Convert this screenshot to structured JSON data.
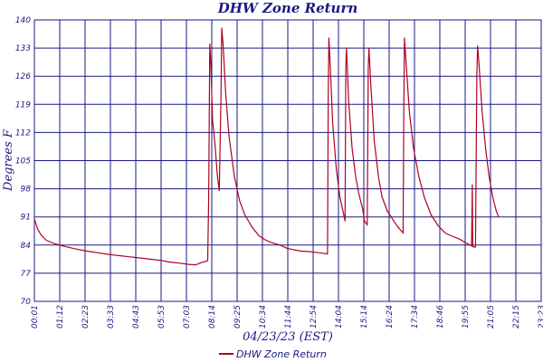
{
  "chart_data": {
    "type": "line",
    "title": "DHW Zone Return",
    "xlabel": "04/23/23 (EST)",
    "ylabel": "Degrees F",
    "ylim": [
      70,
      140
    ],
    "yticks": [
      70,
      77,
      84,
      91,
      98,
      105,
      112,
      119,
      126,
      133,
      140
    ],
    "xlim_minutes": [
      1,
      1443
    ],
    "xticks": [
      "00:01",
      "01:12",
      "02:23",
      "03:33",
      "04:43",
      "05:53",
      "07:03",
      "08:14",
      "09:25",
      "10:34",
      "11:44",
      "12:54",
      "14:04",
      "15:14",
      "16:24",
      "17:34",
      "18:46",
      "19:55",
      "21:05",
      "22:15",
      "23:23"
    ],
    "grid": true,
    "legend_position": "bottom",
    "colors": {
      "series": "#b00020",
      "grid": "#1a1a80",
      "text": "#1a1a80"
    },
    "series": [
      {
        "name": "DHW Zone Return",
        "points": [
          [
            "00:01",
            90.5
          ],
          [
            "00:10",
            88.0
          ],
          [
            "00:20",
            86.5
          ],
          [
            "00:35",
            85.2
          ],
          [
            "01:00",
            84.3
          ],
          [
            "01:30",
            83.6
          ],
          [
            "02:00",
            83.0
          ],
          [
            "02:30",
            82.5
          ],
          [
            "03:00",
            82.1
          ],
          [
            "03:30",
            81.7
          ],
          [
            "04:00",
            81.4
          ],
          [
            "04:30",
            81.1
          ],
          [
            "05:00",
            80.8
          ],
          [
            "05:30",
            80.5
          ],
          [
            "06:00",
            80.2
          ],
          [
            "06:25",
            79.8
          ],
          [
            "06:55",
            79.5
          ],
          [
            "07:20",
            79.2
          ],
          [
            "07:40",
            79.1
          ],
          [
            "07:55",
            79.6
          ],
          [
            "08:10",
            80.0
          ],
          [
            "08:14",
            80.1
          ],
          [
            "08:17",
            96.0
          ],
          [
            "08:20",
            134.0
          ],
          [
            "08:23",
            129.0
          ],
          [
            "08:28",
            115.0
          ],
          [
            "08:35",
            109.0
          ],
          [
            "08:42",
            101.0
          ],
          [
            "08:47",
            97.5
          ],
          [
            "08:52",
            121.0
          ],
          [
            "08:54",
            138.0
          ],
          [
            "08:58",
            134.0
          ],
          [
            "09:05",
            122.0
          ],
          [
            "09:15",
            111.0
          ],
          [
            "09:30",
            101.0
          ],
          [
            "09:45",
            95.0
          ],
          [
            "10:00",
            91.5
          ],
          [
            "10:20",
            88.5
          ],
          [
            "10:40",
            86.3
          ],
          [
            "11:00",
            85.2
          ],
          [
            "11:20",
            84.5
          ],
          [
            "11:40",
            84.0
          ],
          [
            "12:00",
            83.2
          ],
          [
            "12:20",
            82.8
          ],
          [
            "12:40",
            82.5
          ],
          [
            "13:00",
            82.4
          ],
          [
            "13:20",
            82.2
          ],
          [
            "13:40",
            82.0
          ],
          [
            "13:55",
            81.8
          ],
          [
            "13:57",
            121.0
          ],
          [
            "13:59",
            135.5
          ],
          [
            "14:02",
            130.0
          ],
          [
            "14:10",
            114.0
          ],
          [
            "14:20",
            103.0
          ],
          [
            "14:30",
            96.0
          ],
          [
            "14:40",
            92.0
          ],
          [
            "14:45",
            90.0
          ],
          [
            "14:47",
            128.0
          ],
          [
            "14:49",
            133.0
          ],
          [
            "14:55",
            120.0
          ],
          [
            "15:05",
            108.0
          ],
          [
            "15:15",
            101.0
          ],
          [
            "15:25",
            96.5
          ],
          [
            "15:35",
            93.0
          ],
          [
            "15:40",
            90.0
          ],
          [
            "15:48",
            89.0
          ],
          [
            "15:51",
            128.0
          ],
          [
            "15:53",
            133.0
          ],
          [
            "15:58",
            124.0
          ],
          [
            "16:08",
            110.0
          ],
          [
            "16:20",
            101.0
          ],
          [
            "16:30",
            96.0
          ],
          [
            "16:45",
            92.5
          ],
          [
            "17:00",
            90.5
          ],
          [
            "17:15",
            88.5
          ],
          [
            "17:30",
            87.0
          ],
          [
            "17:32",
            118.0
          ],
          [
            "17:34",
            135.5
          ],
          [
            "17:38",
            130.0
          ],
          [
            "17:48",
            117.0
          ],
          [
            "18:00",
            108.0
          ],
          [
            "18:15",
            101.0
          ],
          [
            "18:30",
            96.0
          ],
          [
            "18:50",
            91.5
          ],
          [
            "19:10",
            88.8
          ],
          [
            "19:30",
            87.0
          ],
          [
            "19:50",
            86.2
          ],
          [
            "20:10",
            85.5
          ],
          [
            "20:30",
            84.5
          ],
          [
            "20:45",
            83.8
          ],
          [
            "20:47",
            99.0
          ],
          [
            "20:48",
            83.6
          ],
          [
            "20:56",
            83.5
          ],
          [
            "21:00",
            126.0
          ],
          [
            "21:02",
            133.5
          ],
          [
            "21:06",
            129.0
          ],
          [
            "21:15",
            117.0
          ],
          [
            "21:25",
            108.0
          ],
          [
            "21:35",
            101.0
          ],
          [
            "21:45",
            96.0
          ],
          [
            "21:55",
            92.5
          ],
          [
            "22:02",
            91.0
          ]
        ]
      }
    ]
  }
}
